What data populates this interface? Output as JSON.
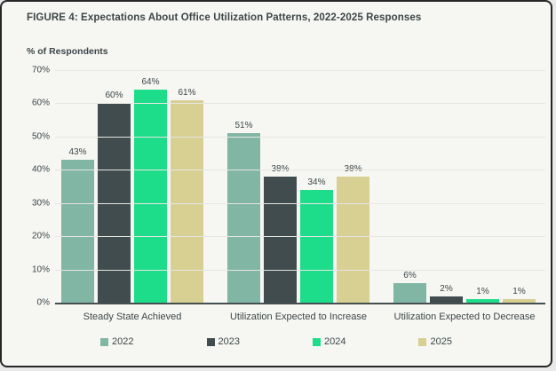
{
  "figure": {
    "title": "FIGURE 4: Expectations About Office Utilization Patterns, 2022-2025 Responses",
    "y_axis_title": "% of Respondents"
  },
  "chart_data": {
    "type": "bar",
    "title": "FIGURE 4: Expectations About Office Utilization Patterns, 2022-2025 Responses",
    "xlabel": "",
    "ylabel": "% of Respondents",
    "ylim": [
      0,
      70
    ],
    "ytick_labels": [
      "70%",
      "60%",
      "50%",
      "40%",
      "30%",
      "20%",
      "10%",
      "0%"
    ],
    "grid": true,
    "legend_position": "bottom",
    "value_label_suffix": "%",
    "categories": [
      "Steady State Achieved",
      "Utilization Expected to Increase",
      "Utilization Expected to Decrease"
    ],
    "series": [
      {
        "name": "2022",
        "color": "#81b6a4",
        "values": [
          43,
          51,
          6
        ]
      },
      {
        "name": "2023",
        "color": "#404c4e",
        "values": [
          60,
          38,
          2
        ]
      },
      {
        "name": "2024",
        "color": "#1edd8a",
        "values": [
          64,
          34,
          1
        ]
      },
      {
        "name": "2025",
        "color": "#d8cf93",
        "values": [
          61,
          38,
          1
        ]
      }
    ]
  },
  "colors": {
    "background": "#f6f6f3",
    "border": "#262626",
    "text": "#3c4747",
    "gridline": "#e6e6e2",
    "axis": "#434f50"
  }
}
